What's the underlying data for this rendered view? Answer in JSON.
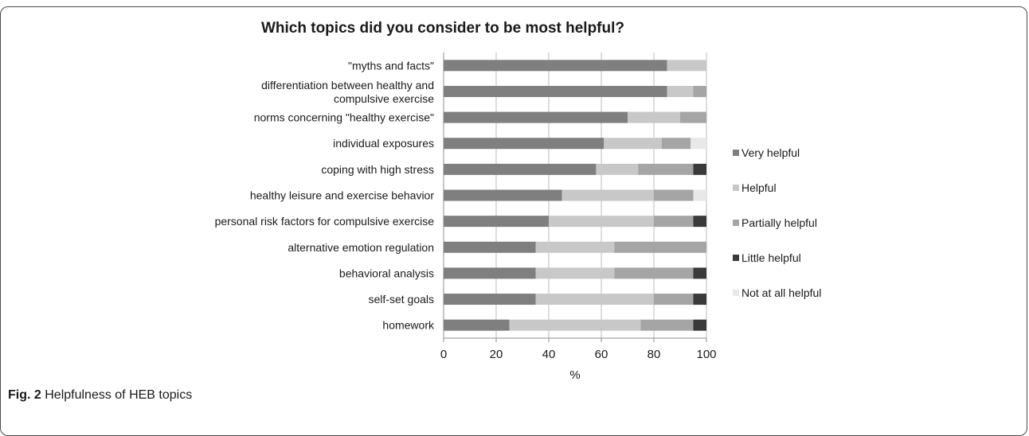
{
  "caption": {
    "label": "Fig. 2",
    "text": "Helpfulness of HEB topics"
  },
  "chart_data": {
    "type": "bar",
    "orientation": "horizontal",
    "stacked": true,
    "title": "Which topics did you consider to be most helpful?",
    "xlabel": "%",
    "ylabel": "",
    "xlim": [
      0,
      100
    ],
    "xticks": [
      0,
      20,
      40,
      60,
      80,
      100
    ],
    "grid": true,
    "legend_position": "right",
    "categories": [
      "\"myths and facts\"",
      "differentiation between healthy and compulsive exercise",
      "norms concerning \"healthy exercise\"",
      "individual exposures",
      "coping with high stress",
      "healthy leisure and exercise behavior",
      "personal risk factors for compulsive exercise",
      "alternative emotion regulation",
      "behavioral analysis",
      "self-set goals",
      "homework"
    ],
    "series": [
      {
        "name": "Very helpful",
        "color": "#7f7f7f",
        "values": [
          85,
          85,
          70,
          61,
          58,
          45,
          40,
          35,
          35,
          35,
          25
        ]
      },
      {
        "name": "Helpful",
        "color": "#c8c8c8",
        "values": [
          15,
          10,
          20,
          22,
          16,
          35,
          40,
          30,
          30,
          45,
          50
        ]
      },
      {
        "name": "Partially helpful",
        "color": "#a5a5a5",
        "values": [
          0,
          5,
          10,
          11,
          21,
          15,
          15,
          35,
          30,
          15,
          20
        ]
      },
      {
        "name": "Little helpful",
        "color": "#3a3a3a",
        "values": [
          0,
          0,
          0,
          0,
          5,
          0,
          5,
          0,
          5,
          5,
          5
        ]
      },
      {
        "name": "Not at all helpful",
        "color": "#e8e8e8",
        "values": [
          0,
          0,
          0,
          6,
          0,
          5,
          0,
          0,
          0,
          0,
          0
        ]
      }
    ]
  }
}
